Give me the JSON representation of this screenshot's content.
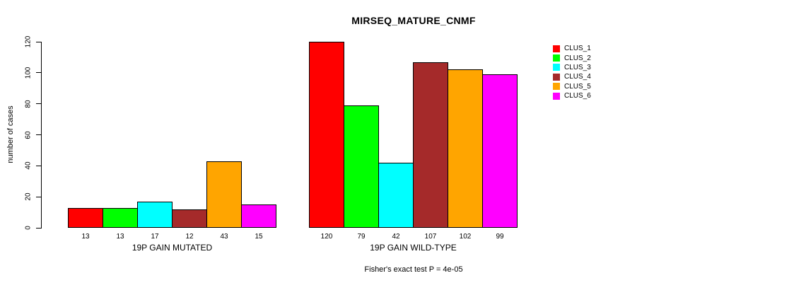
{
  "chart_data": {
    "type": "bar",
    "title": "MIRSEQ_MATURE_CNMF",
    "ylabel": "number of cases",
    "xlabel": "",
    "ylim": [
      0,
      120
    ],
    "yticks": [
      0,
      20,
      40,
      60,
      80,
      100,
      120
    ],
    "grid": false,
    "legend_position": "right",
    "categories": [
      "19P GAIN MUTATED",
      "19P GAIN WILD-TYPE"
    ],
    "series": [
      {
        "name": "CLUS_1",
        "color": "#FF0000",
        "values": [
          13,
          120
        ]
      },
      {
        "name": "CLUS_2",
        "color": "#00FF00",
        "values": [
          13,
          79
        ]
      },
      {
        "name": "CLUS_3",
        "color": "#00FFFF",
        "values": [
          17,
          42
        ]
      },
      {
        "name": "CLUS_4",
        "color": "#A52A2A",
        "values": [
          12,
          107
        ]
      },
      {
        "name": "CLUS_5",
        "color": "#FFA500",
        "values": [
          43,
          102
        ]
      },
      {
        "name": "CLUS_6",
        "color": "#FF00FF",
        "values": [
          15,
          99
        ]
      }
    ],
    "bar_value_labels": true,
    "annotation": "Fisher's exact test P = 4e-05",
    "axis_color": "#000000",
    "background_color": "#FFFFFF"
  }
}
